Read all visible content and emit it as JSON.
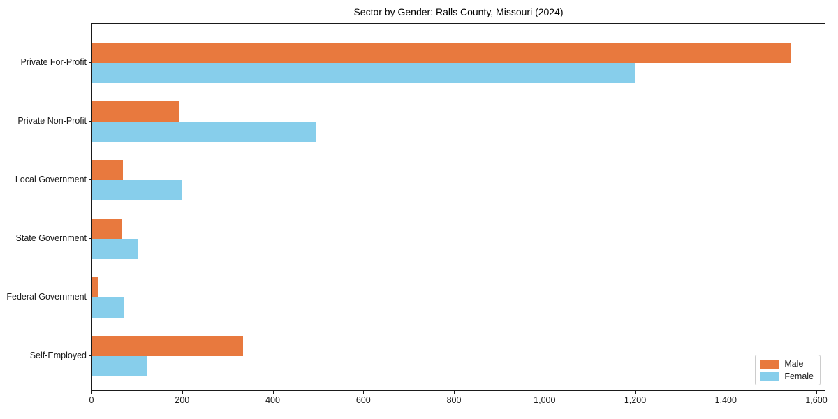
{
  "chart_data": {
    "type": "bar",
    "orientation": "horizontal",
    "title": "Sector by Gender: Ralls County, Missouri (2024)",
    "categories": [
      "Private For-Profit",
      "Private Non-Profit",
      "Local Government",
      "State Government",
      "Federal Government",
      "Self-Employed"
    ],
    "series": [
      {
        "name": "Male",
        "color": "#e8793e",
        "values": [
          1543,
          191,
          67,
          66,
          14,
          333
        ]
      },
      {
        "name": "Female",
        "color": "#87ceeb",
        "values": [
          1199,
          493,
          199,
          102,
          71,
          120
        ]
      }
    ],
    "xlabel": "",
    "ylabel": "",
    "xlim": [
      0,
      1620
    ],
    "x_tick_values": [
      0,
      200,
      400,
      600,
      800,
      1000,
      1200,
      1400,
      1600
    ],
    "x_tick_labels": [
      "0",
      "200",
      "400",
      "600",
      "800",
      "1,000",
      "1,200",
      "1,400",
      "1,600"
    ],
    "legend": {
      "position": "lower right",
      "entries": [
        "Male",
        "Female"
      ]
    },
    "grid": false,
    "bar_colors": {
      "male": "#e8793e",
      "female": "#87ceeb"
    },
    "spine_color": "#1a1a1a"
  }
}
